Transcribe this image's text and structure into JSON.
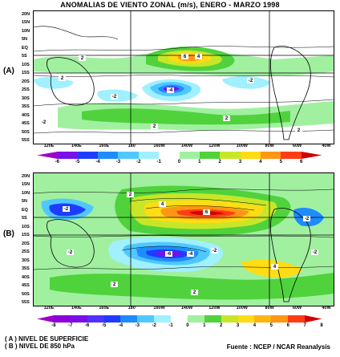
{
  "title": "ANOMALIAS DE VIENTO ZONAL (m/s), ENERO - MARZO 1998",
  "panels": [
    {
      "label": "(A)"
    },
    {
      "label": "(B)"
    }
  ],
  "lat_ticks": [
    "20N",
    "15N",
    "10N",
    "5N",
    "EQ",
    "5S",
    "10S",
    "15S",
    "20S",
    "25S",
    "30S",
    "35S",
    "40S",
    "45S",
    "50S",
    "55S"
  ],
  "lon_ticks": [
    "120E",
    "140E",
    "160E",
    "180",
    "160W",
    "140W",
    "120W",
    "100W",
    "80W",
    "60W",
    "40W"
  ],
  "colorbar_a": {
    "labels": [
      "-6",
      "-5",
      "-4",
      "-3",
      "-2",
      "-1",
      "0",
      "1",
      "2",
      "3",
      "4",
      "5",
      "6"
    ],
    "colors": [
      "#a000c8",
      "#7a10e8",
      "#1e3cff",
      "#1e8cff",
      "#50c8ff",
      "#a0f0ff",
      "#ffffff",
      "#a0f0a0",
      "#50d23c",
      "#c8e628",
      "#ffdc14",
      "#ff9614",
      "#ff3c14",
      "#d20000"
    ]
  },
  "colorbar_b": {
    "labels": [
      "-8",
      "-7",
      "-6",
      "-5",
      "-4",
      "-3",
      "-2",
      "-1",
      "0",
      "1",
      "2",
      "3",
      "4",
      "5",
      "6",
      "7",
      "8"
    ],
    "colors": [
      "#a000c8",
      "#8c00dc",
      "#7a10e8",
      "#5030ff",
      "#1e3cff",
      "#1e8cff",
      "#50c8ff",
      "#a0f0ff",
      "#ffffff",
      "#a0f0a0",
      "#50d23c",
      "#c8e628",
      "#ffdc14",
      "#ffb414",
      "#ff9614",
      "#ff3c14",
      "#d20000"
    ]
  },
  "notes": {
    "line1": "( A ) NIVEL DE SUPERFICIE",
    "line2": "( B ) NIVEL DE 850 hPa",
    "source": "Fuente : NCEP / NCAR Reanalysis"
  },
  "contour_labels_a": [
    "2",
    "4",
    "6",
    "-4",
    "-2",
    "2",
    "-2",
    "2",
    "-2",
    "2",
    "2"
  ],
  "contour_labels_b": [
    "6",
    "4",
    "2",
    "-2",
    "-4",
    "-6",
    "-2",
    "2",
    "4",
    "-2",
    "-2",
    "2",
    "-2"
  ]
}
